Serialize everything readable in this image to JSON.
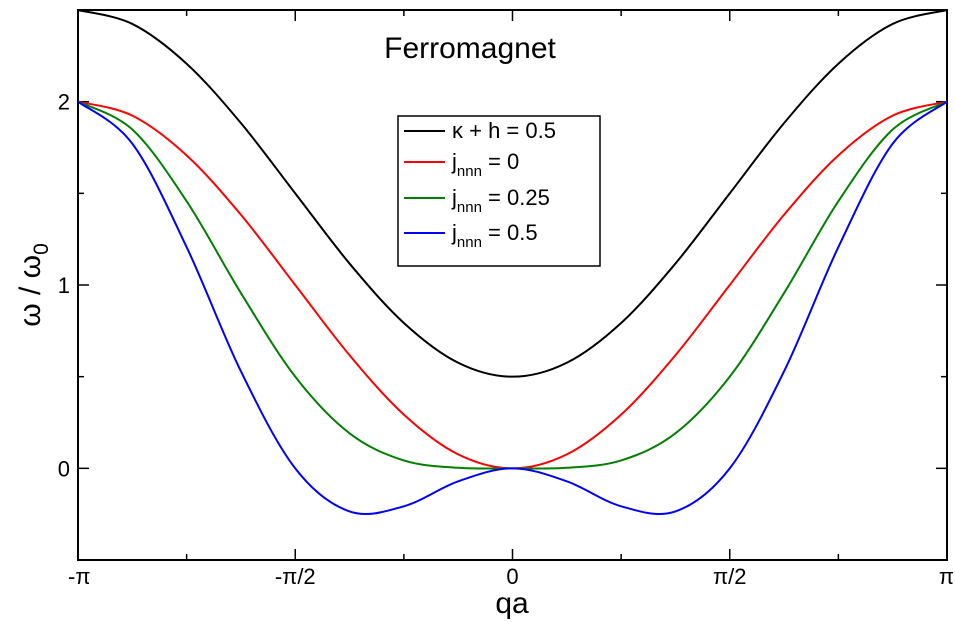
{
  "chart_data": {
    "type": "line",
    "title": "Ferromagnet",
    "xlabel": "qa",
    "ylabel": "ω / ω",
    "ylabel_sub": "0",
    "xlim": [
      -3.14159,
      3.14159
    ],
    "ylim": [
      -0.5,
      2.5
    ],
    "grid": false,
    "legend_position": "upper-center",
    "x_ticks": [
      {
        "value": -3.14159,
        "label": "-π"
      },
      {
        "value": -1.5708,
        "label": "-π/2"
      },
      {
        "value": 0,
        "label": "0"
      },
      {
        "value": 1.5708,
        "label": "π/2"
      },
      {
        "value": 3.14159,
        "label": "π"
      }
    ],
    "y_ticks": [
      {
        "value": 0,
        "label": "0"
      },
      {
        "value": 1,
        "label": "1"
      },
      {
        "value": 2,
        "label": "2"
      }
    ],
    "series": [
      {
        "name": "κ + h = 0.5",
        "color": "#000000",
        "x": [
          -3.1416,
          -2.7489,
          -2.3562,
          -1.9635,
          -1.5708,
          -1.1781,
          -0.7854,
          -0.3927,
          0.0,
          0.3927,
          0.7854,
          1.1781,
          1.5708,
          1.9635,
          2.3562,
          2.7489,
          3.1416
        ],
        "y": [
          2.5,
          2.424,
          2.207,
          1.883,
          1.5,
          1.117,
          0.793,
          0.576,
          0.5,
          0.576,
          0.793,
          1.117,
          1.5,
          1.883,
          2.207,
          2.424,
          2.5
        ]
      },
      {
        "name_main": "j",
        "name_sub": "nnn",
        "name_rest": " = 0",
        "color": "#ff0000",
        "x": [
          -3.1416,
          -2.7489,
          -2.3562,
          -1.9635,
          -1.5708,
          -1.1781,
          -0.7854,
          -0.3927,
          0.0,
          0.3927,
          0.7854,
          1.1781,
          1.5708,
          1.9635,
          2.3562,
          2.7489,
          3.1416
        ],
        "y": [
          2.0,
          1.924,
          1.707,
          1.383,
          1.0,
          0.617,
          0.293,
          0.076,
          0.0,
          0.076,
          0.293,
          0.617,
          1.0,
          1.383,
          1.707,
          1.924,
          2.0
        ]
      },
      {
        "name_main": "j",
        "name_sub": "nnn",
        "name_rest": " = 0.25",
        "color": "#008000",
        "x": [
          -3.1416,
          -2.7489,
          -2.3562,
          -1.9635,
          -1.5708,
          -1.1781,
          -0.7854,
          -0.3927,
          0.0,
          0.3927,
          0.7854,
          1.1781,
          1.5708,
          1.9635,
          2.3562,
          2.7489,
          3.1416
        ],
        "y": [
          2.0,
          1.848,
          1.457,
          0.956,
          0.5,
          0.191,
          0.043,
          0.003,
          0.0,
          0.003,
          0.043,
          0.191,
          0.5,
          0.956,
          1.457,
          1.848,
          2.0
        ]
      },
      {
        "name_main": "j",
        "name_sub": "nnn",
        "name_rest": " = 0.5",
        "color": "#0000ff",
        "x": [
          -3.1416,
          -2.7489,
          -2.3562,
          -1.9635,
          -1.5708,
          -1.1781,
          -0.7854,
          -0.3927,
          0.0,
          0.3927,
          0.7854,
          1.1781,
          1.5708,
          1.9635,
          2.3562,
          2.7489,
          3.1416
        ],
        "y": [
          2.0,
          1.771,
          1.207,
          0.529,
          0.0,
          -0.235,
          -0.207,
          -0.071,
          0.0,
          -0.071,
          -0.207,
          -0.235,
          0.0,
          0.529,
          1.207,
          1.771,
          2.0
        ]
      }
    ]
  }
}
